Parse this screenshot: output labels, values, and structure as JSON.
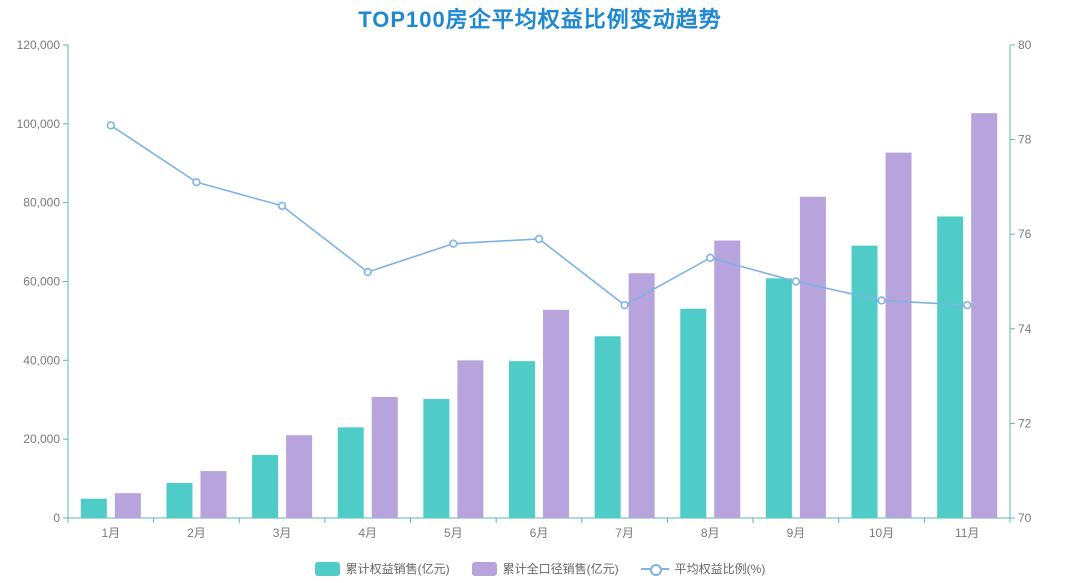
{
  "title": "TOP100房企平均权益比例变动趋势",
  "colors": {
    "title_blue": "#1e88d2",
    "bar_teal": "#4fccc8",
    "bar_purple": "#b7a4dd",
    "line_blue": "#7fb2e5",
    "axis_teal": "#5cb8b0",
    "tick_label_gray": "#7a7a7a",
    "legend_text_gray": "#666666"
  },
  "legend": {
    "items": [
      {
        "label": "累计权益销售(亿元)",
        "type": "bar",
        "color_key": "bar_teal"
      },
      {
        "label": "累计全口径销售(亿元)",
        "type": "bar",
        "color_key": "bar_purple"
      },
      {
        "label": "平均权益比例(%)",
        "type": "line",
        "color_key": "line_blue"
      }
    ]
  },
  "chart_data": {
    "type": "bar",
    "subtype": "grouped-bars-with-line",
    "categories": [
      "1月",
      "2月",
      "3月",
      "4月",
      "5月",
      "6月",
      "7月",
      "8月",
      "9月",
      "10月",
      "11月"
    ],
    "series": [
      {
        "name": "累计权益销售(亿元)",
        "type": "bar",
        "axis": "left",
        "color_key": "bar_teal",
        "values": [
          4900,
          8900,
          16000,
          23000,
          30200,
          39800,
          46100,
          53100,
          60800,
          69100,
          76500
        ]
      },
      {
        "name": "累计全口径销售(亿元)",
        "type": "bar",
        "axis": "left",
        "color_key": "bar_purple",
        "values": [
          6300,
          11900,
          21000,
          30700,
          40000,
          52800,
          62100,
          70400,
          81500,
          92700,
          102700
        ]
      },
      {
        "name": "平均权益比例(%)",
        "type": "line",
        "axis": "right",
        "color_key": "line_blue",
        "values": [
          78.3,
          77.1,
          76.6,
          75.2,
          75.8,
          75.9,
          74.5,
          75.5,
          75.0,
          74.6,
          74.5
        ]
      }
    ],
    "left_axis": {
      "min": 0,
      "max": 120000,
      "step": 20000,
      "tick_format": "thousands-comma"
    },
    "right_axis": {
      "min": 70,
      "max": 80,
      "step": 2
    },
    "grid": false,
    "legend_position": "bottom",
    "title": "TOP100房企平均权益比例变动趋势",
    "xlabel": "",
    "ylabel_left": "",
    "ylabel_right": ""
  }
}
